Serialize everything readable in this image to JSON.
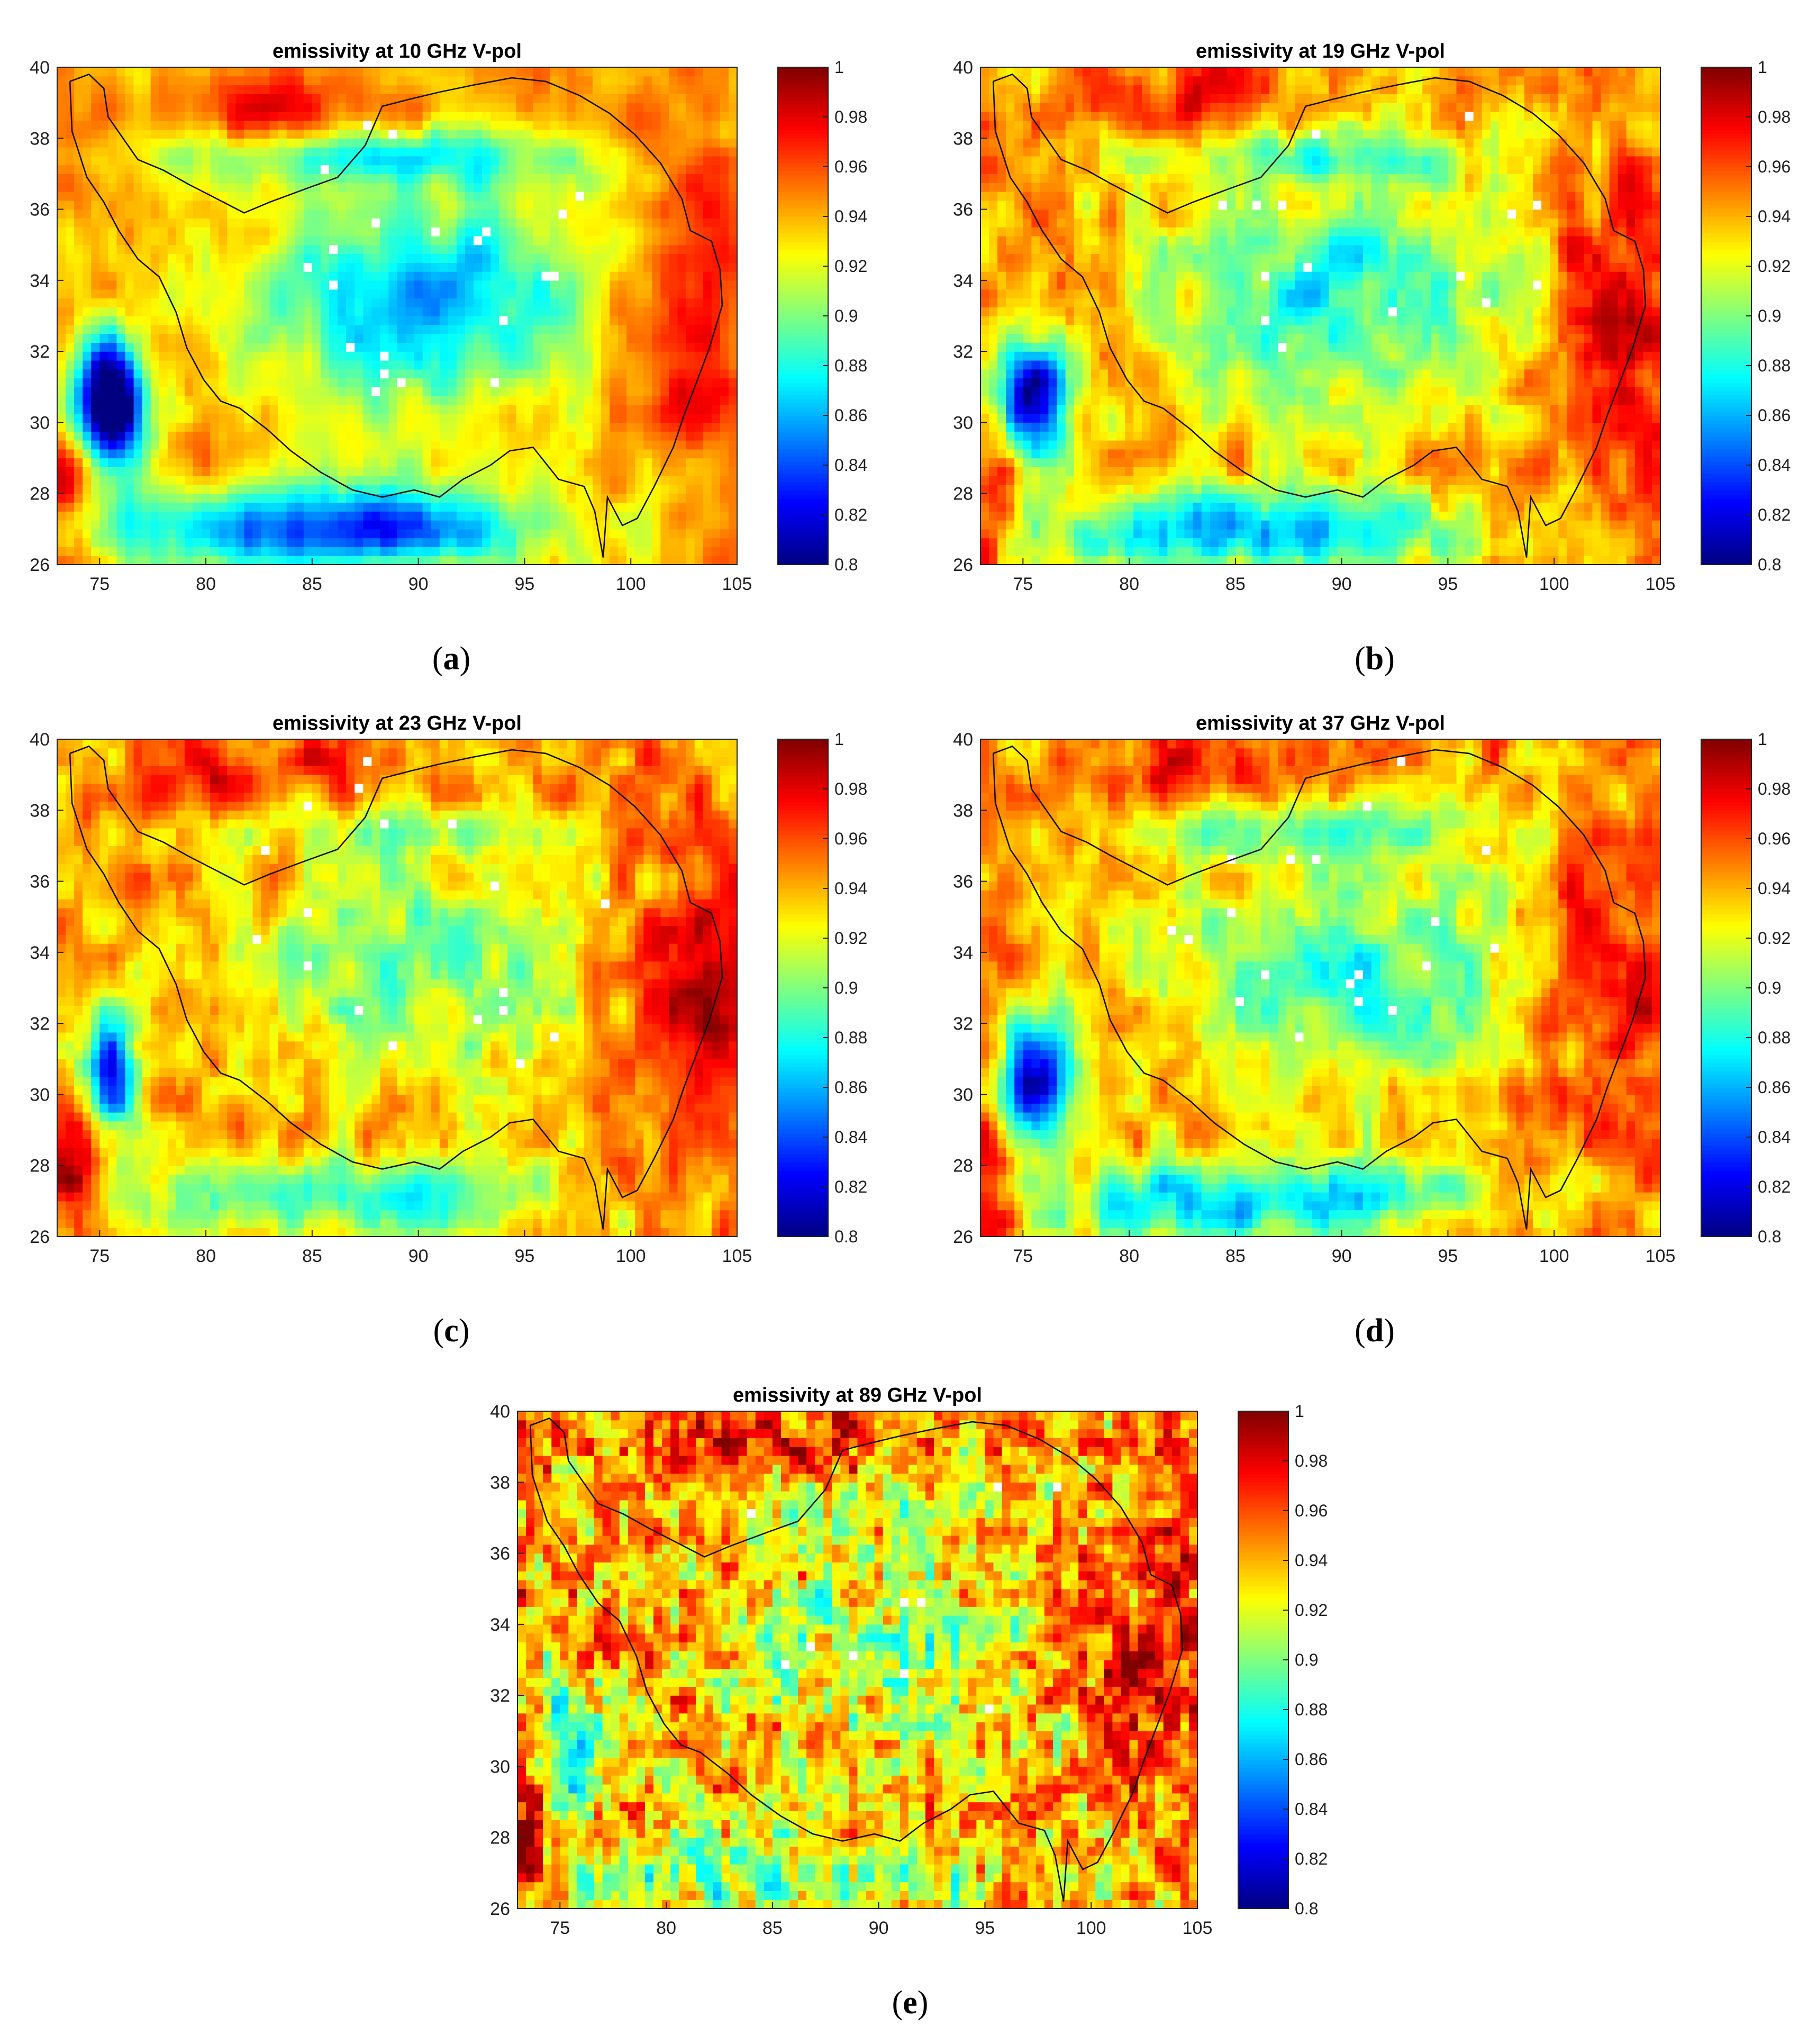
{
  "figure": {
    "captions": [
      "a",
      "b",
      "c",
      "d",
      "e"
    ]
  },
  "chart_data": [
    {
      "type": "heatmap",
      "title": "emissivity at 10 GHz V-pol",
      "xlabel": "",
      "ylabel": "",
      "xlim": [
        73,
        105
      ],
      "ylim": [
        26,
        40
      ],
      "xticks": [
        75,
        80,
        85,
        90,
        95,
        100,
        105
      ],
      "yticks": [
        26,
        28,
        30,
        32,
        34,
        36,
        38,
        40
      ],
      "colorbar": {
        "colormap": "jet",
        "range": [
          0.8,
          1
        ],
        "ticks": [
          "0.8",
          "0.82",
          "0.84",
          "0.86",
          "0.88",
          "0.9",
          "0.92",
          "0.94",
          "0.96",
          "0.98",
          "1"
        ]
      },
      "pattern": "low",
      "overlay": "Tibetan Plateau boundary"
    },
    {
      "type": "heatmap",
      "title": "emissivity at 19 GHz V-pol",
      "xlabel": "",
      "ylabel": "",
      "xlim": [
        73,
        105
      ],
      "ylim": [
        26,
        40
      ],
      "xticks": [
        75,
        80,
        85,
        90,
        95,
        100,
        105
      ],
      "yticks": [
        26,
        28,
        30,
        32,
        34,
        36,
        38,
        40
      ],
      "colorbar": {
        "colormap": "jet",
        "range": [
          0.8,
          1
        ],
        "ticks": [
          "0.8",
          "0.82",
          "0.84",
          "0.86",
          "0.88",
          "0.9",
          "0.92",
          "0.94",
          "0.96",
          "0.98",
          "1"
        ]
      },
      "pattern": "mid",
      "overlay": "Tibetan Plateau boundary"
    },
    {
      "type": "heatmap",
      "title": "emissivity at 23 GHz V-pol",
      "xlabel": "",
      "ylabel": "",
      "xlim": [
        73,
        105
      ],
      "ylim": [
        26,
        40
      ],
      "xticks": [
        75,
        80,
        85,
        90,
        95,
        100,
        105
      ],
      "yticks": [
        26,
        28,
        30,
        32,
        34,
        36,
        38,
        40
      ],
      "colorbar": {
        "colormap": "jet",
        "range": [
          0.8,
          1
        ],
        "ticks": [
          "0.8",
          "0.82",
          "0.84",
          "0.86",
          "0.88",
          "0.9",
          "0.92",
          "0.94",
          "0.96",
          "0.98",
          "1"
        ]
      },
      "pattern": "warm",
      "overlay": "Tibetan Plateau boundary"
    },
    {
      "type": "heatmap",
      "title": "emissivity at 37 GHz V-pol",
      "xlabel": "",
      "ylabel": "",
      "xlim": [
        73,
        105
      ],
      "ylim": [
        26,
        40
      ],
      "xticks": [
        75,
        80,
        85,
        90,
        95,
        100,
        105
      ],
      "yticks": [
        26,
        28,
        30,
        32,
        34,
        36,
        38,
        40
      ],
      "colorbar": {
        "colormap": "jet",
        "range": [
          0.8,
          1
        ],
        "ticks": [
          "0.8",
          "0.82",
          "0.84",
          "0.86",
          "0.88",
          "0.9",
          "0.92",
          "0.94",
          "0.96",
          "0.98",
          "1"
        ]
      },
      "pattern": "mid",
      "overlay": "Tibetan Plateau boundary"
    },
    {
      "type": "heatmap",
      "title": "emissivity at 89 GHz V-pol",
      "xlabel": "",
      "ylabel": "",
      "xlim": [
        73,
        105
      ],
      "ylim": [
        26,
        40
      ],
      "xticks": [
        75,
        80,
        85,
        90,
        95,
        100,
        105
      ],
      "yticks": [
        26,
        28,
        30,
        32,
        34,
        36,
        38,
        40
      ],
      "colorbar": {
        "colormap": "jet",
        "range": [
          0.8,
          1
        ],
        "ticks": [
          "0.8",
          "0.82",
          "0.84",
          "0.86",
          "0.88",
          "0.9",
          "0.92",
          "0.94",
          "0.96",
          "0.98",
          "1"
        ]
      },
      "pattern": "noisy",
      "overlay": "Tibetan Plateau boundary"
    }
  ]
}
